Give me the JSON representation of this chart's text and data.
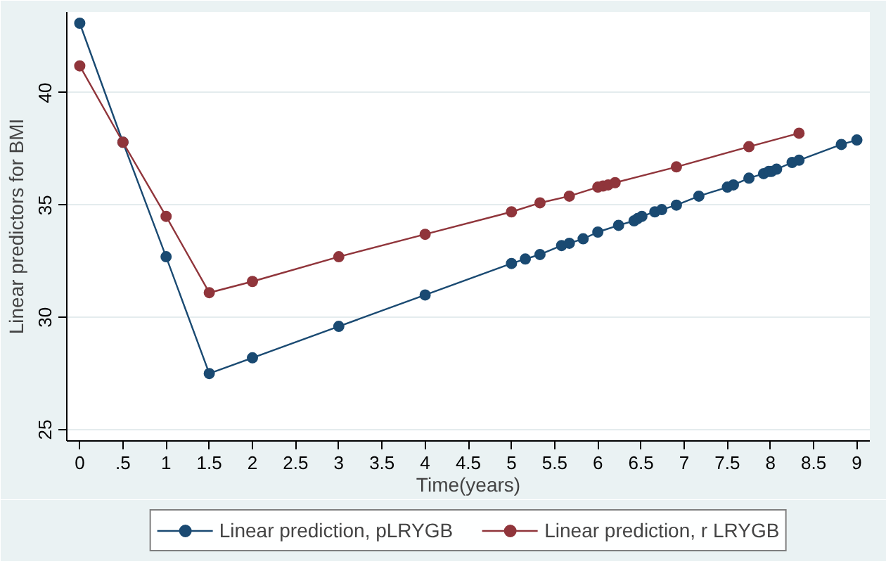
{
  "chart_data": {
    "type": "line",
    "xlabel": "Time(years)",
    "ylabel": "Linear predictors for BMI",
    "xlim": [
      -0.15,
      9.15
    ],
    "ylim": [
      24.5,
      43.6
    ],
    "xticks": [
      0,
      {
        "value": 0.5,
        "label": ".5"
      },
      1,
      1.5,
      2,
      2.5,
      3,
      3.5,
      4,
      4.5,
      5,
      5.5,
      6,
      6.5,
      7,
      7.5,
      8,
      8.5,
      9
    ],
    "yticks": [
      25,
      30,
      35,
      40
    ],
    "grid": "y",
    "legend": "bottom",
    "marker": "circle",
    "line_style": "solid",
    "series": [
      {
        "name": "Linear prediction, pLRYGB",
        "color": "#1a4a72",
        "x": [
          0,
          0.5,
          1,
          1.5,
          2,
          3,
          4,
          5.0,
          5.16,
          5.33,
          5.58,
          5.67,
          5.83,
          6.0,
          6.24,
          6.42,
          6.46,
          6.51,
          6.66,
          6.74,
          6.91,
          7.17,
          7.5,
          7.57,
          7.75,
          7.92,
          7.98,
          8.01,
          8.07,
          8.25,
          8.33,
          8.82,
          9.0
        ],
        "values": [
          43.1,
          37.8,
          32.7,
          27.5,
          28.2,
          29.6,
          31.0,
          32.4,
          32.6,
          32.8,
          33.2,
          33.3,
          33.5,
          33.8,
          34.1,
          34.3,
          34.4,
          34.5,
          34.7,
          34.8,
          35.0,
          35.4,
          35.8,
          35.9,
          36.2,
          36.4,
          36.5,
          36.5,
          36.6,
          36.9,
          37.0,
          37.7,
          37.9
        ]
      },
      {
        "name": "Linear prediction, r LRYGB",
        "color": "#90353b",
        "x": [
          0,
          0.5,
          1,
          1.5,
          2,
          3,
          4,
          5.0,
          5.33,
          5.67,
          6.0,
          6.06,
          6.12,
          6.2,
          6.91,
          7.75,
          8.33
        ],
        "values": [
          41.2,
          37.8,
          34.5,
          31.1,
          31.6,
          32.7,
          33.7,
          34.7,
          35.1,
          35.4,
          35.8,
          35.85,
          35.9,
          36.0,
          36.7,
          37.6,
          38.2
        ]
      }
    ]
  }
}
